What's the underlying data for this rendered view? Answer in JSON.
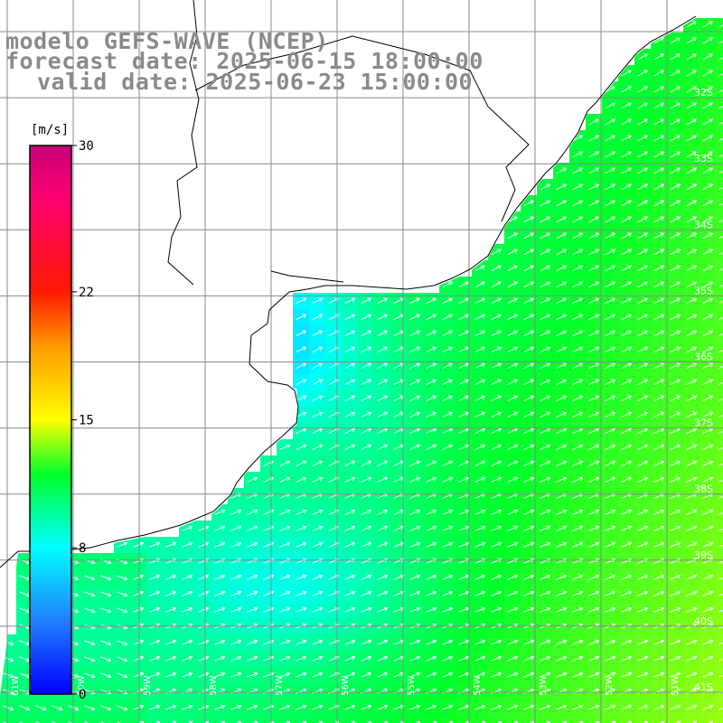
{
  "title": {
    "model": "modelo GEFS-WAVE (NCEP)",
    "forecast": "forecast date: 2025-06-15 18:00:00",
    "valid": "valid date: 2025-06-23 15:00:00"
  },
  "colorbar": {
    "unit": "[m/s]",
    "ticks": [
      {
        "value": 30,
        "label": "30"
      },
      {
        "value": 22,
        "label": "22"
      },
      {
        "value": 15,
        "label": "15"
      },
      {
        "value": 8,
        "label": "8"
      },
      {
        "value": 0,
        "label": "0"
      }
    ],
    "stops": [
      {
        "value": 0,
        "color": "#0000ff"
      },
      {
        "value": 4,
        "color": "#1f7fff"
      },
      {
        "value": 8,
        "color": "#00ffff"
      },
      {
        "value": 12,
        "color": "#00ff2a"
      },
      {
        "value": 15,
        "color": "#ffff00"
      },
      {
        "value": 19,
        "color": "#ff9a00"
      },
      {
        "value": 22,
        "color": "#ff1a00"
      },
      {
        "value": 27,
        "color": "#ff0070"
      },
      {
        "value": 30,
        "color": "#c8007a"
      }
    ]
  },
  "map": {
    "lon_range": [
      -61,
      -50
    ],
    "lat_range": [
      -41,
      -30
    ],
    "grid_step_deg": 1,
    "lat_labels": [
      "32S",
      "33S",
      "34S",
      "35S",
      "36S",
      "37S",
      "38S",
      "39S",
      "40S",
      "41S"
    ],
    "lon_labels": [
      "61W",
      "60W",
      "59W",
      "58W",
      "57W",
      "56W",
      "55W",
      "54W",
      "53W",
      "52W",
      "51W"
    ],
    "land_color": "#ffffff",
    "grid_color": "#888888",
    "coast_color": "#000000",
    "arrow_color": "#ffffff",
    "wind_direction_text": "northeast"
  }
}
